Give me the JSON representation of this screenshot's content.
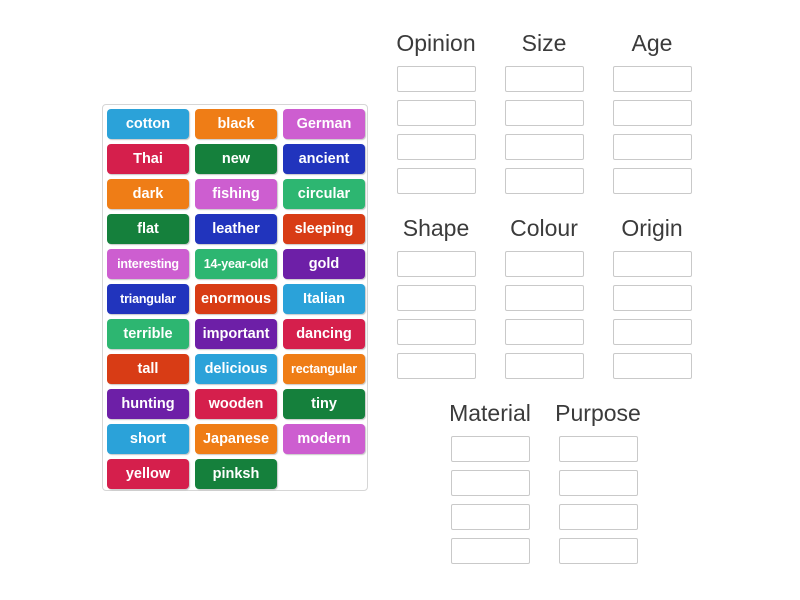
{
  "palette": {
    "lightblue": "#2ba2d9",
    "orange": "#ef7d16",
    "orchid": "#cd5ed0",
    "crimson": "#d51f4c",
    "green": "#15803c",
    "blue": "#2134bd",
    "emerald": "#2db671",
    "vermilion": "#d83c15",
    "purple": "#6d1fa7",
    "header_text": "#3b3b3b",
    "slot_border": "#c9c9c9",
    "panel_border": "#d6d6d6",
    "page_background": "#ffffff"
  },
  "word_bank": {
    "tiles": [
      {
        "label": "cotton",
        "color": "lightblue"
      },
      {
        "label": "black",
        "color": "orange"
      },
      {
        "label": "German",
        "color": "orchid"
      },
      {
        "label": "Thai",
        "color": "crimson"
      },
      {
        "label": "new",
        "color": "green"
      },
      {
        "label": "ancient",
        "color": "blue"
      },
      {
        "label": "dark",
        "color": "orange"
      },
      {
        "label": "fishing",
        "color": "orchid"
      },
      {
        "label": "circular",
        "color": "emerald"
      },
      {
        "label": "flat",
        "color": "green"
      },
      {
        "label": "leather",
        "color": "blue"
      },
      {
        "label": "sleeping",
        "color": "vermilion"
      },
      {
        "label": "interesting",
        "color": "orchid"
      },
      {
        "label": "14-year-old",
        "color": "emerald"
      },
      {
        "label": "gold",
        "color": "purple"
      },
      {
        "label": "triangular",
        "color": "blue"
      },
      {
        "label": "enormous",
        "color": "vermilion"
      },
      {
        "label": "Italian",
        "color": "lightblue"
      },
      {
        "label": "terrible",
        "color": "emerald"
      },
      {
        "label": "important",
        "color": "purple"
      },
      {
        "label": "dancing",
        "color": "crimson"
      },
      {
        "label": "tall",
        "color": "vermilion"
      },
      {
        "label": "delicious",
        "color": "lightblue"
      },
      {
        "label": "rectangular",
        "color": "orange"
      },
      {
        "label": "hunting",
        "color": "purple"
      },
      {
        "label": "wooden",
        "color": "crimson"
      },
      {
        "label": "tiny",
        "color": "green"
      },
      {
        "label": "short",
        "color": "lightblue"
      },
      {
        "label": "Japanese",
        "color": "orange"
      },
      {
        "label": "modern",
        "color": "orchid"
      },
      {
        "label": "yellow",
        "color": "crimson"
      },
      {
        "label": "pinksh",
        "color": "green"
      }
    ]
  },
  "groups": [
    {
      "label": "Opinion",
      "slot_count": 4
    },
    {
      "label": "Size",
      "slot_count": 4
    },
    {
      "label": "Age",
      "slot_count": 4
    },
    {
      "label": "Shape",
      "slot_count": 4
    },
    {
      "label": "Colour",
      "slot_count": 4
    },
    {
      "label": "Origin",
      "slot_count": 4
    },
    {
      "label": "Material",
      "slot_count": 4
    },
    {
      "label": "Purpose",
      "slot_count": 4
    }
  ]
}
